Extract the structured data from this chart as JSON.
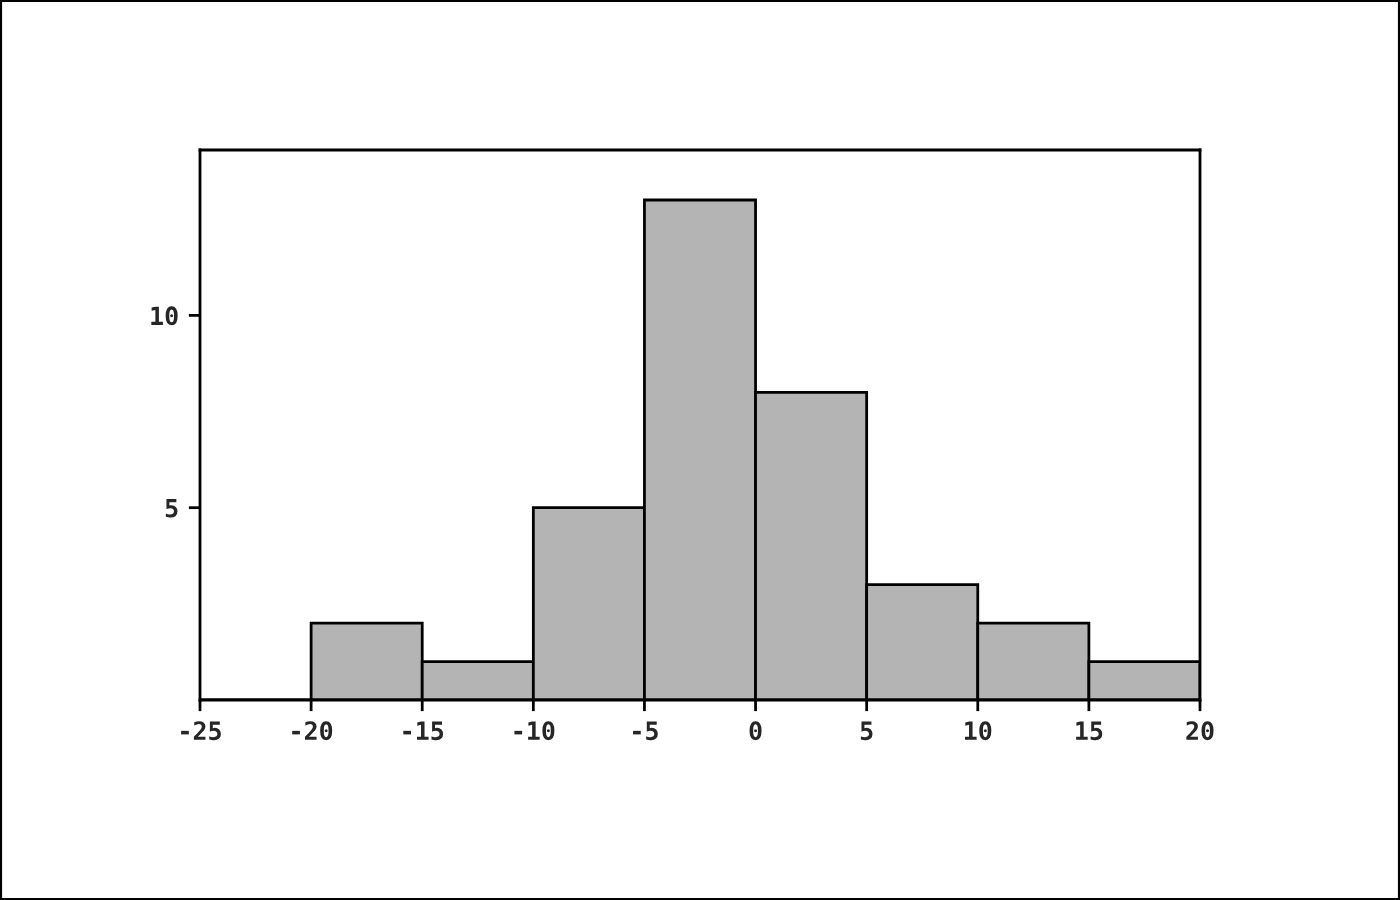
{
  "chart_data": {
    "type": "histogram",
    "bins": [
      -25,
      -20,
      -15,
      -10,
      -5,
      0,
      5,
      10,
      15,
      20
    ],
    "values": [
      0,
      2,
      1,
      5,
      13,
      8,
      3,
      2,
      1
    ],
    "color": "#b4b4b4",
    "xlim": [
      -25,
      20
    ],
    "xticks": [
      -25,
      -20,
      -15,
      -10,
      -5,
      0,
      5,
      10,
      15,
      20
    ],
    "ylim": [
      0,
      14.3
    ],
    "yticks": [
      5,
      10
    ]
  }
}
